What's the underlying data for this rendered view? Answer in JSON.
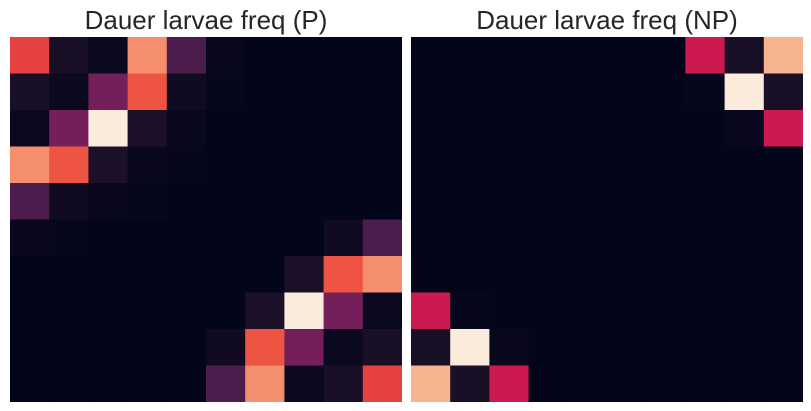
{
  "chart_data": [
    {
      "type": "heatmap",
      "title": "Dauer larvae freq (P)",
      "colormap": "rocket",
      "value_range": [
        0,
        1
      ],
      "rows": 10,
      "cols": 10,
      "values": [
        [
          0.62,
          0.08,
          0.03,
          0.8,
          0.22,
          0.02,
          0.0,
          0.0,
          0.0,
          0.0
        ],
        [
          0.08,
          0.03,
          0.32,
          0.68,
          0.05,
          0.01,
          0.0,
          0.0,
          0.0,
          0.0
        ],
        [
          0.03,
          0.32,
          1.0,
          0.09,
          0.02,
          0.0,
          0.0,
          0.0,
          0.0,
          0.0
        ],
        [
          0.8,
          0.68,
          0.09,
          0.02,
          0.01,
          0.0,
          0.0,
          0.0,
          0.0,
          0.0
        ],
        [
          0.22,
          0.05,
          0.02,
          0.01,
          0.0,
          0.0,
          0.0,
          0.0,
          0.0,
          0.0
        ],
        [
          0.02,
          0.01,
          0.0,
          0.0,
          0.0,
          0.0,
          0.0,
          0.0,
          0.05,
          0.22
        ],
        [
          0.0,
          0.0,
          0.0,
          0.0,
          0.0,
          0.0,
          0.0,
          0.09,
          0.68,
          0.8
        ],
        [
          0.0,
          0.0,
          0.0,
          0.0,
          0.0,
          0.0,
          0.09,
          1.0,
          0.32,
          0.03
        ],
        [
          0.0,
          0.0,
          0.0,
          0.0,
          0.0,
          0.05,
          0.68,
          0.32,
          0.03,
          0.08
        ],
        [
          0.0,
          0.0,
          0.0,
          0.0,
          0.0,
          0.22,
          0.8,
          0.03,
          0.08,
          0.62
        ]
      ]
    },
    {
      "type": "heatmap",
      "title": "Dauer larvae freq (NP)",
      "colormap": "rocket",
      "value_range": [
        0,
        1
      ],
      "rows": 10,
      "cols": 10,
      "values": [
        [
          0.0,
          0.0,
          0.0,
          0.0,
          0.0,
          0.0,
          0.0,
          0.5,
          0.08,
          0.85
        ],
        [
          0.0,
          0.0,
          0.0,
          0.0,
          0.0,
          0.0,
          0.0,
          0.01,
          1.0,
          0.08
        ],
        [
          0.0,
          0.0,
          0.0,
          0.0,
          0.0,
          0.0,
          0.0,
          0.0,
          0.02,
          0.5
        ],
        [
          0.0,
          0.0,
          0.0,
          0.0,
          0.0,
          0.0,
          0.0,
          0.0,
          0.0,
          0.0
        ],
        [
          0.0,
          0.0,
          0.0,
          0.0,
          0.0,
          0.0,
          0.0,
          0.0,
          0.0,
          0.0
        ],
        [
          0.0,
          0.0,
          0.0,
          0.0,
          0.0,
          0.0,
          0.0,
          0.0,
          0.0,
          0.0
        ],
        [
          0.0,
          0.0,
          0.0,
          0.0,
          0.0,
          0.0,
          0.0,
          0.0,
          0.0,
          0.0
        ],
        [
          0.5,
          0.01,
          0.0,
          0.0,
          0.0,
          0.0,
          0.0,
          0.0,
          0.0,
          0.0
        ],
        [
          0.08,
          1.0,
          0.02,
          0.0,
          0.0,
          0.0,
          0.0,
          0.0,
          0.0,
          0.0
        ],
        [
          0.85,
          0.08,
          0.5,
          0.0,
          0.0,
          0.0,
          0.0,
          0.0,
          0.0,
          0.0
        ]
      ]
    }
  ]
}
